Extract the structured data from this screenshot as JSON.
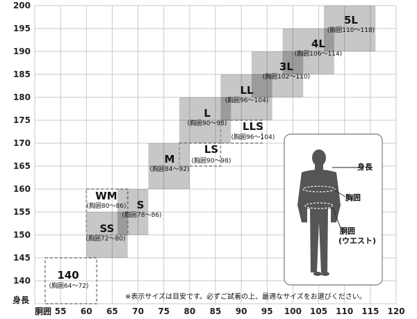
{
  "chart_data": {
    "type": "heatmap",
    "xlabel": "胴囲",
    "ylabel": "身長",
    "xlim": [
      50,
      120
    ],
    "ylim": [
      135,
      200
    ],
    "x_ticks": [
      55,
      60,
      65,
      70,
      75,
      80,
      85,
      90,
      95,
      100,
      105,
      110,
      115,
      120
    ],
    "y_ticks": [
      140,
      145,
      150,
      155,
      160,
      165,
      170,
      175,
      180,
      185,
      190,
      195,
      200
    ],
    "grid": true,
    "regions": [
      {
        "size": "140",
        "chest": "(胸囲64〜72)",
        "x": [
          52,
          62
        ],
        "y": [
          135,
          145
        ],
        "style": "dashed"
      },
      {
        "size": "SS",
        "chest": "(胸囲72〜80)",
        "x": [
          60,
          68
        ],
        "y": [
          145,
          155
        ],
        "style": "filled"
      },
      {
        "size": "WM",
        "chest": "(胸囲80〜86)",
        "x": [
          60,
          68
        ],
        "y": [
          150,
          160
        ],
        "style": "dashed"
      },
      {
        "size": "S",
        "chest": "(胸囲78〜86)",
        "x": [
          66,
          72
        ],
        "y": [
          150,
          160
        ],
        "style": "filled"
      },
      {
        "size": "M",
        "chest": "(胸囲84〜92)",
        "x": [
          72,
          80
        ],
        "y": [
          160,
          170
        ],
        "style": "filled"
      },
      {
        "size": "LS",
        "chest": "(胸囲90〜98)",
        "x": [
          78,
          86
        ],
        "y": [
          165,
          170
        ],
        "style": "dashed"
      },
      {
        "size": "L",
        "chest": "(胸囲90〜98)",
        "x": [
          78,
          88
        ],
        "y": [
          170,
          180
        ],
        "style": "filled"
      },
      {
        "size": "LLS",
        "chest": "(胸囲96〜104)",
        "x": [
          86,
          94
        ],
        "y": [
          170,
          175
        ],
        "style": "dashed"
      },
      {
        "size": "LL",
        "chest": "(胸囲96〜104)",
        "x": [
          86,
          96
        ],
        "y": [
          175,
          185
        ],
        "style": "filled"
      },
      {
        "size": "3L",
        "chest": "(胸囲102〜110)",
        "x": [
          92,
          102
        ],
        "y": [
          180,
          190
        ],
        "style": "filled"
      },
      {
        "size": "4L",
        "chest": "(胸囲106〜114)",
        "x": [
          98,
          108
        ],
        "y": [
          185,
          195
        ],
        "style": "filled"
      },
      {
        "size": "5L",
        "chest": "(胸囲110〜118)",
        "x": [
          106,
          116
        ],
        "y": [
          190,
          200
        ],
        "style": "filled"
      }
    ],
    "annotations": {
      "note": "※表示サイズは目安です。必ずご試着の上、最適なサイズをお選びください。",
      "figure_labels": {
        "height": "身長",
        "chest": "胸囲",
        "waist": "胴囲",
        "waist_sub": "(ウエスト)"
      }
    }
  }
}
